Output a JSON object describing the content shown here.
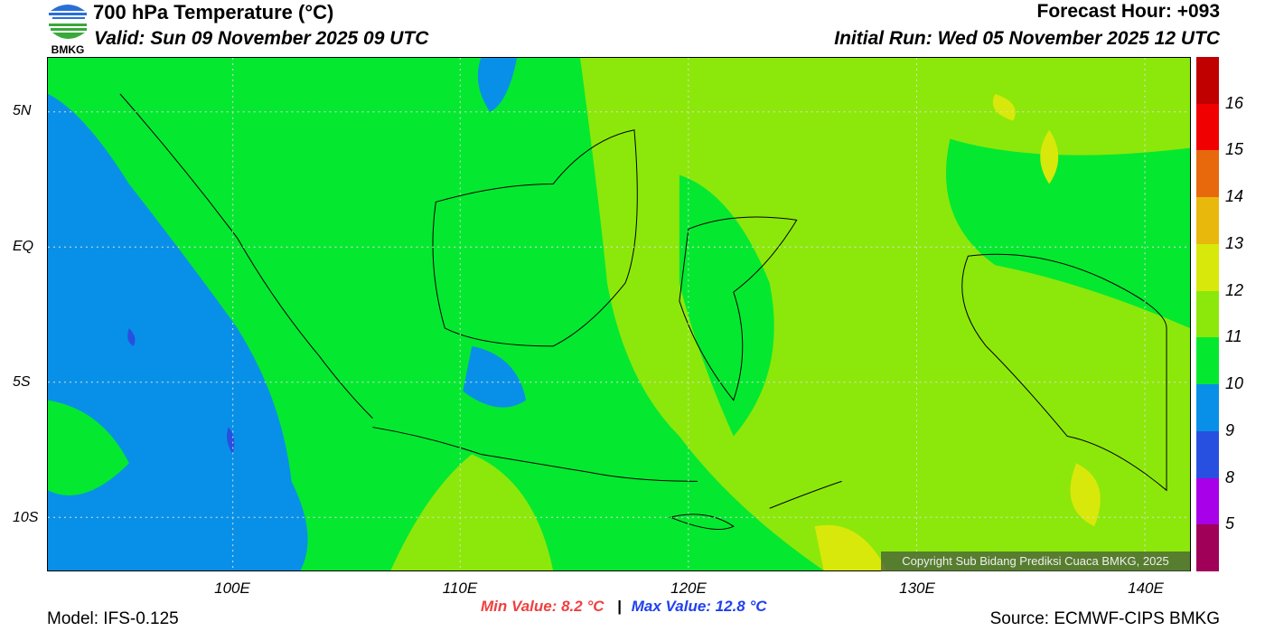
{
  "header": {
    "title": "700 hPa Temperature (°C)",
    "valid": "Valid: Sun 09 November 2025 09 UTC",
    "forecast_hour": "Forecast Hour: +093",
    "initial_run": "Initial Run: Wed 05 November 2025 12 UTC",
    "logo_text": "BMKG"
  },
  "map": {
    "lon_labels": [
      "100E",
      "110E",
      "120E",
      "130E",
      "140E"
    ],
    "lat_labels": [
      "5N",
      "EQ",
      "5S",
      "10S"
    ],
    "copyright": "Copyright Sub Bidang Prediksi Cuaca BMKG, 2025"
  },
  "colorbar": {
    "labels": [
      "16",
      "15",
      "14",
      "13",
      "12",
      "11",
      "10",
      "9",
      "8",
      "5"
    ],
    "colors": [
      "#c00000",
      "#f00000",
      "#e8680c",
      "#e8b80c",
      "#d8e80a",
      "#8ce80a",
      "#05e830",
      "#0890e8",
      "#2850e0",
      "#a800e8",
      "#a00058"
    ]
  },
  "stats": {
    "min": "Min Value: 8.2 °C",
    "separator": "|",
    "max": "Max Value: 12.8 °C",
    "min_color": "#f04040",
    "max_color": "#2040f0"
  },
  "footer": {
    "model": "Model: IFS-0.125",
    "source": "Source: ECMWF-CIPS BMKG"
  }
}
